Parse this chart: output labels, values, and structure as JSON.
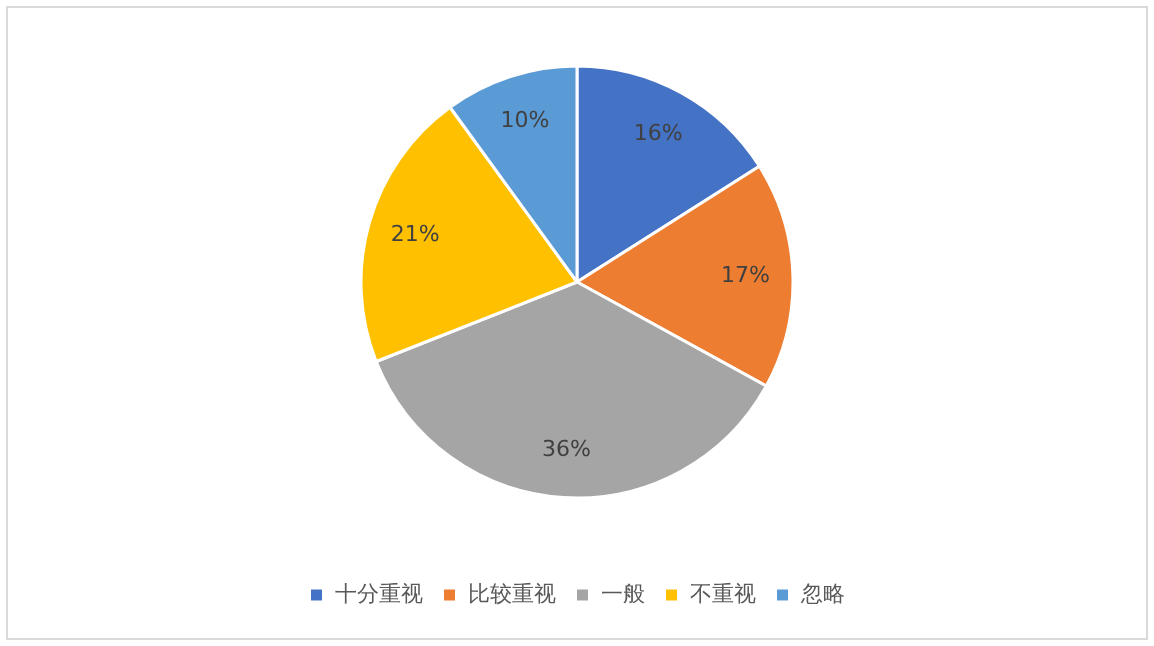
{
  "chart_data": {
    "type": "pie",
    "categories": [
      "十分重视",
      "比较重视",
      "一般",
      "不重视",
      "忽略"
    ],
    "values": [
      16,
      17,
      36,
      21,
      10
    ],
    "colors": [
      "#4472c4",
      "#ed7d31",
      "#a5a5a5",
      "#ffc000",
      "#5b9bd5"
    ],
    "value_labels": [
      "16%",
      "17%",
      "36%",
      "21%",
      "10%"
    ],
    "legend": "bottom"
  }
}
